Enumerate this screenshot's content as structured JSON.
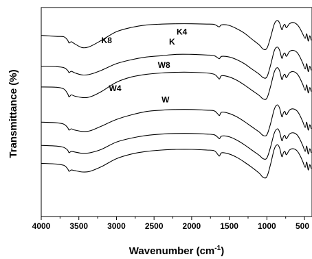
{
  "chart_data": {
    "type": "line",
    "xlabel": "Wavenumber (cm",
    "xlabel_sup": "-1",
    "xlabel_suffix": ")",
    "ylabel": "Transmittance (%)",
    "xlim": [
      4000,
      400
    ],
    "x_reversed": true,
    "y_ticks_shown": false,
    "grid": false,
    "x_ticks": [
      {
        "value": 4000,
        "label": "4000"
      },
      {
        "value": 3500,
        "label": "3500"
      },
      {
        "value": 3000,
        "label": "3000"
      },
      {
        "value": 2500,
        "label": "2500"
      },
      {
        "value": 2000,
        "label": "2000"
      },
      {
        "value": 1500,
        "label": "1500"
      },
      {
        "value": 1000,
        "label": "1000"
      },
      {
        "value": 500,
        "label": "500"
      }
    ],
    "series": [
      {
        "name": "K8",
        "label_at": [
          3200,
          0.33
        ],
        "points": [
          [
            4000,
            0.275
          ],
          [
            3800,
            0.29
          ],
          [
            3700,
            0.295
          ],
          [
            3650,
            0.345
          ],
          [
            3630,
            0.39
          ],
          [
            3600,
            0.37
          ],
          [
            3550,
            0.405
          ],
          [
            3450,
            0.46
          ],
          [
            3350,
            0.44
          ],
          [
            3200,
            0.35
          ],
          [
            3000,
            0.22
          ],
          [
            2800,
            0.155
          ],
          [
            2600,
            0.118
          ],
          [
            2400,
            0.105
          ],
          [
            2200,
            0.1
          ],
          [
            2000,
            0.1
          ],
          [
            1800,
            0.105
          ],
          [
            1700,
            0.11
          ],
          [
            1650,
            0.14
          ],
          [
            1630,
            0.145
          ],
          [
            1600,
            0.115
          ],
          [
            1500,
            0.125
          ],
          [
            1400,
            0.175
          ],
          [
            1300,
            0.24
          ],
          [
            1200,
            0.33
          ],
          [
            1100,
            0.42
          ],
          [
            1050,
            0.48
          ],
          [
            1000,
            0.47
          ],
          [
            950,
            0.3
          ],
          [
            900,
            0.1
          ],
          [
            860,
            0.05
          ],
          [
            830,
            0.09
          ],
          [
            800,
            0.19
          ],
          [
            780,
            0.13
          ],
          [
            760,
            0.11
          ],
          [
            740,
            0.16
          ],
          [
            700,
            0.1
          ],
          [
            650,
            0.08
          ],
          [
            600,
            0.11
          ],
          [
            560,
            0.17
          ],
          [
            520,
            0.26
          ],
          [
            490,
            0.32
          ],
          [
            470,
            0.25
          ],
          [
            450,
            0.36
          ],
          [
            430,
            0.28
          ],
          [
            410,
            0.35
          ]
        ]
      },
      {
        "name": "K4",
        "label_at": [
          2200,
          0.2
        ],
        "points": [
          [
            4000,
            0.74
          ],
          [
            3800,
            0.745
          ],
          [
            3700,
            0.76
          ],
          [
            3650,
            0.8
          ],
          [
            3630,
            0.835
          ],
          [
            3600,
            0.815
          ],
          [
            3550,
            0.84
          ],
          [
            3450,
            0.87
          ],
          [
            3350,
            0.86
          ],
          [
            3200,
            0.8
          ],
          [
            3000,
            0.7
          ],
          [
            2800,
            0.64
          ],
          [
            2600,
            0.6
          ],
          [
            2400,
            0.58
          ],
          [
            2200,
            0.56
          ],
          [
            2000,
            0.56
          ],
          [
            1800,
            0.57
          ],
          [
            1700,
            0.58
          ],
          [
            1650,
            0.615
          ],
          [
            1630,
            0.625
          ],
          [
            1600,
            0.59
          ],
          [
            1500,
            0.6
          ],
          [
            1400,
            0.64
          ],
          [
            1300,
            0.7
          ],
          [
            1200,
            0.78
          ],
          [
            1100,
            0.86
          ],
          [
            1050,
            0.91
          ],
          [
            1000,
            0.9
          ],
          [
            950,
            0.72
          ],
          [
            900,
            0.5
          ],
          [
            860,
            0.45
          ],
          [
            830,
            0.5
          ],
          [
            800,
            0.62
          ],
          [
            780,
            0.56
          ],
          [
            760,
            0.54
          ],
          [
            740,
            0.59
          ],
          [
            700,
            0.52
          ],
          [
            650,
            0.5
          ],
          [
            600,
            0.53
          ],
          [
            560,
            0.6
          ],
          [
            520,
            0.7
          ],
          [
            490,
            0.78
          ],
          [
            470,
            0.7
          ],
          [
            450,
            0.82
          ],
          [
            430,
            0.74
          ],
          [
            410,
            0.8
          ]
        ]
      },
      {
        "name": "K",
        "label_at": [
          2300,
          0.35
        ],
        "points": [
          [
            4000,
            1.05
          ],
          [
            3800,
            1.055
          ],
          [
            3700,
            1.08
          ],
          [
            3650,
            1.15
          ],
          [
            3630,
            1.2
          ],
          [
            3600,
            1.17
          ],
          [
            3550,
            1.19
          ],
          [
            3450,
            1.21
          ],
          [
            3350,
            1.2
          ],
          [
            3200,
            1.12
          ],
          [
            3000,
            0.98
          ],
          [
            2800,
            0.9
          ],
          [
            2600,
            0.86
          ],
          [
            2400,
            0.84
          ],
          [
            2200,
            0.83
          ],
          [
            2000,
            0.83
          ],
          [
            1800,
            0.84
          ],
          [
            1700,
            0.86
          ],
          [
            1650,
            0.91
          ],
          [
            1630,
            0.93
          ],
          [
            1600,
            0.88
          ],
          [
            1500,
            0.9
          ],
          [
            1400,
            0.95
          ],
          [
            1300,
            1.02
          ],
          [
            1200,
            1.1
          ],
          [
            1100,
            1.18
          ],
          [
            1050,
            1.23
          ],
          [
            1000,
            1.22
          ],
          [
            950,
            1.04
          ],
          [
            900,
            0.82
          ],
          [
            860,
            0.76
          ],
          [
            830,
            0.81
          ],
          [
            800,
            0.94
          ],
          [
            780,
            0.88
          ],
          [
            760,
            0.86
          ],
          [
            740,
            0.91
          ],
          [
            700,
            0.84
          ],
          [
            650,
            0.82
          ],
          [
            600,
            0.85
          ],
          [
            560,
            0.92
          ],
          [
            520,
            1.02
          ],
          [
            490,
            1.1
          ],
          [
            470,
            1.02
          ],
          [
            450,
            1.14
          ],
          [
            430,
            1.06
          ],
          [
            410,
            1.12
          ]
        ]
      },
      {
        "name": "W8",
        "label_at": [
          2450,
          0.7
        ],
        "points": [
          [
            4000,
            1.58
          ],
          [
            3800,
            1.59
          ],
          [
            3700,
            1.61
          ],
          [
            3650,
            1.66
          ],
          [
            3630,
            1.7
          ],
          [
            3600,
            1.68
          ],
          [
            3550,
            1.7
          ],
          [
            3450,
            1.72
          ],
          [
            3350,
            1.71
          ],
          [
            3200,
            1.64
          ],
          [
            3000,
            1.54
          ],
          [
            2800,
            1.47
          ],
          [
            2600,
            1.42
          ],
          [
            2400,
            1.4
          ],
          [
            2200,
            1.39
          ],
          [
            2000,
            1.39
          ],
          [
            1800,
            1.4
          ],
          [
            1700,
            1.41
          ],
          [
            1650,
            1.46
          ],
          [
            1630,
            1.48
          ],
          [
            1600,
            1.43
          ],
          [
            1500,
            1.45
          ],
          [
            1400,
            1.5
          ],
          [
            1300,
            1.57
          ],
          [
            1200,
            1.65
          ],
          [
            1100,
            1.73
          ],
          [
            1050,
            1.78
          ],
          [
            1000,
            1.77
          ],
          [
            950,
            1.6
          ],
          [
            900,
            1.38
          ],
          [
            860,
            1.32
          ],
          [
            830,
            1.37
          ],
          [
            800,
            1.5
          ],
          [
            780,
            1.44
          ],
          [
            760,
            1.42
          ],
          [
            740,
            1.47
          ],
          [
            700,
            1.4
          ],
          [
            650,
            1.38
          ],
          [
            600,
            1.41
          ],
          [
            560,
            1.48
          ],
          [
            520,
            1.58
          ],
          [
            490,
            1.66
          ],
          [
            470,
            1.58
          ],
          [
            450,
            1.7
          ],
          [
            430,
            1.62
          ],
          [
            410,
            1.68
          ]
        ]
      },
      {
        "name": "W4",
        "label_at": [
          3100,
          1.05
        ],
        "points": [
          [
            4000,
            1.93
          ],
          [
            3800,
            1.94
          ],
          [
            3700,
            1.96
          ],
          [
            3650,
            2.0
          ],
          [
            3630,
            2.04
          ],
          [
            3600,
            2.02
          ],
          [
            3550,
            2.03
          ],
          [
            3450,
            2.05
          ],
          [
            3350,
            2.04
          ],
          [
            3200,
            1.99
          ],
          [
            3000,
            1.88
          ],
          [
            2800,
            1.82
          ],
          [
            2600,
            1.78
          ],
          [
            2400,
            1.76
          ],
          [
            2200,
            1.75
          ],
          [
            2000,
            1.75
          ],
          [
            1800,
            1.76
          ],
          [
            1700,
            1.77
          ],
          [
            1650,
            1.81
          ],
          [
            1630,
            1.83
          ],
          [
            1600,
            1.79
          ],
          [
            1500,
            1.8
          ],
          [
            1400,
            1.85
          ],
          [
            1300,
            1.92
          ],
          [
            1200,
            2.0
          ],
          [
            1100,
            2.08
          ],
          [
            1050,
            2.13
          ],
          [
            1000,
            2.12
          ],
          [
            950,
            1.95
          ],
          [
            900,
            1.74
          ],
          [
            860,
            1.68
          ],
          [
            830,
            1.73
          ],
          [
            800,
            1.86
          ],
          [
            780,
            1.8
          ],
          [
            760,
            1.78
          ],
          [
            740,
            1.83
          ],
          [
            700,
            1.76
          ],
          [
            650,
            1.74
          ],
          [
            600,
            1.77
          ],
          [
            560,
            1.84
          ],
          [
            520,
            1.94
          ],
          [
            490,
            2.02
          ],
          [
            470,
            1.94
          ],
          [
            450,
            2.06
          ],
          [
            430,
            1.98
          ],
          [
            410,
            2.04
          ]
        ]
      },
      {
        "name": "W",
        "label_at": [
          2400,
          1.22
        ],
        "points": [
          [
            4000,
            2.2
          ],
          [
            3800,
            2.21
          ],
          [
            3700,
            2.23
          ],
          [
            3650,
            2.28
          ],
          [
            3630,
            2.32
          ],
          [
            3600,
            2.3
          ],
          [
            3550,
            2.31
          ],
          [
            3450,
            2.33
          ],
          [
            3350,
            2.32
          ],
          [
            3200,
            2.25
          ],
          [
            3000,
            2.13
          ],
          [
            2800,
            2.06
          ],
          [
            2600,
            2.02
          ],
          [
            2400,
            2.0
          ],
          [
            2200,
            1.99
          ],
          [
            2000,
            1.99
          ],
          [
            1800,
            2.0
          ],
          [
            1700,
            2.01
          ],
          [
            1650,
            2.07
          ],
          [
            1630,
            2.09
          ],
          [
            1600,
            2.04
          ],
          [
            1500,
            2.06
          ],
          [
            1400,
            2.11
          ],
          [
            1300,
            2.18
          ],
          [
            1200,
            2.26
          ],
          [
            1100,
            2.35
          ],
          [
            1050,
            2.41
          ],
          [
            1000,
            2.4
          ],
          [
            950,
            2.21
          ],
          [
            900,
            1.98
          ],
          [
            860,
            1.92
          ],
          [
            830,
            1.97
          ],
          [
            800,
            2.1
          ],
          [
            780,
            2.04
          ],
          [
            760,
            2.02
          ],
          [
            740,
            2.07
          ],
          [
            700,
            2.0
          ],
          [
            650,
            1.98
          ],
          [
            600,
            2.01
          ],
          [
            560,
            2.08
          ],
          [
            520,
            2.18
          ],
          [
            490,
            2.26
          ],
          [
            470,
            2.18
          ],
          [
            450,
            2.3
          ],
          [
            430,
            2.22
          ],
          [
            410,
            2.28
          ]
        ]
      }
    ]
  }
}
